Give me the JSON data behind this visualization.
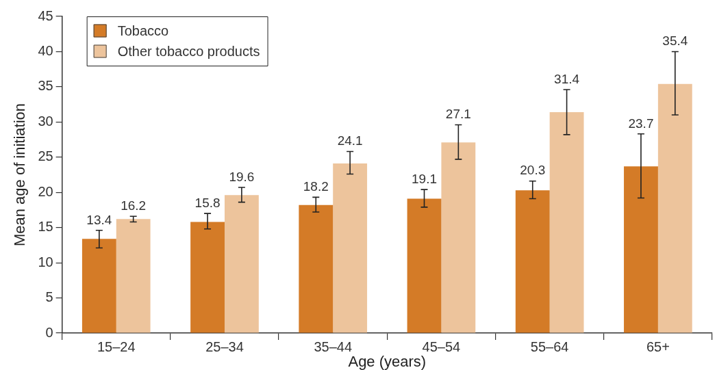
{
  "chart_data": {
    "type": "bar",
    "xlabel": "Age (years)",
    "ylabel": "Mean age of initiation",
    "categories": [
      "15–24",
      "25–34",
      "35–44",
      "45–54",
      "55–64",
      "65+"
    ],
    "series": [
      {
        "name": "Tobacco",
        "color": "#d47b27",
        "values": [
          13.4,
          15.8,
          18.2,
          19.1,
          20.3,
          23.7
        ],
        "errors": [
          [
            12.1,
            14.6
          ],
          [
            14.8,
            17.0
          ],
          [
            17.2,
            19.3
          ],
          [
            17.9,
            20.4
          ],
          [
            19.1,
            21.6
          ],
          [
            19.2,
            28.3
          ]
        ]
      },
      {
        "name": "Other tobacco products",
        "color": "#edc49c",
        "values": [
          16.2,
          19.6,
          24.1,
          27.1,
          31.4,
          35.4
        ],
        "errors": [
          [
            15.8,
            16.6
          ],
          [
            18.6,
            20.7
          ],
          [
            22.6,
            25.8
          ],
          [
            24.7,
            29.6
          ],
          [
            28.2,
            34.6
          ],
          [
            31.0,
            40.0
          ]
        ]
      }
    ],
    "ylim": [
      0,
      45
    ],
    "yticks": [
      0,
      5,
      10,
      15,
      20,
      25,
      30,
      35,
      40,
      45
    ],
    "grid": false,
    "legend": "top left",
    "data_labels": true
  }
}
